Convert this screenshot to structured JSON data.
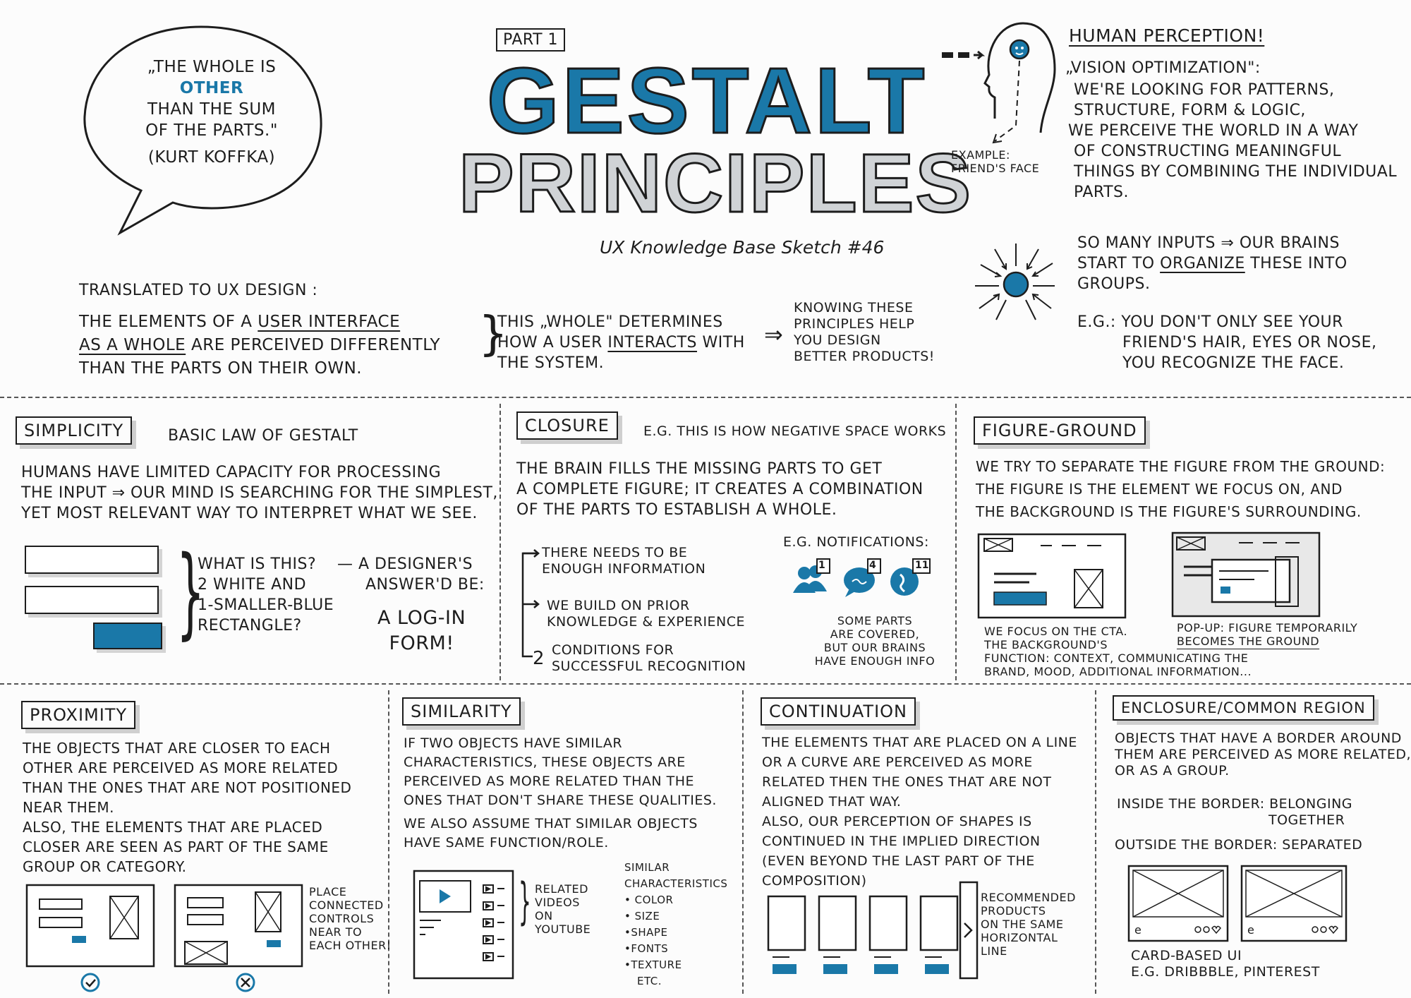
{
  "title": {
    "part": "PART 1",
    "line1": "GESTALT",
    "line2": "PRINCIPLES",
    "subtitle": "UX Knowledge Base Sketch #46"
  },
  "quote": {
    "line1": "„THE WHOLE IS",
    "line2": "OTHER",
    "line3": "THAN THE SUM",
    "line4": "OF THE PARTS.\"",
    "author": "(KURT KOFFKA)"
  },
  "perception": {
    "heading": "HUMAN PERCEPTION!",
    "example": "EXAMPLE:",
    "example2": "FRIEND'S FACE",
    "sub": "„VISION OPTIMIZATION\":",
    "lines": [
      "WE'RE LOOKING FOR PATTERNS,",
      "STRUCTURE, FORM & LOGIC,",
      "WE PERCEIVE THE WORLD IN A WAY",
      "OF CONSTRUCTING MEANINGFUL",
      "THINGS BY COMBINING THE INDIVIDUAL",
      "PARTS."
    ],
    "inputs1": "SO MANY INPUTS ⇒ OUR BRAINS",
    "inputs2a": "START TO ",
    "inputs2b": "ORGANIZE",
    "inputs2c": " THESE INTO",
    "inputs3": "GROUPS.",
    "eg1": "E.G.: YOU DON'T ONLY SEE YOUR",
    "eg2": "FRIEND'S HAIR, EYES OR NOSE,",
    "eg3": "YOU RECOGNIZE THE FACE."
  },
  "translated": {
    "heading": "TRANSLATED TO UX DESIGN :",
    "l1a": "THE ELEMENTS OF A ",
    "l1b": "USER INTERFACE",
    "l2a": "AS A WHOLE",
    "l2b": " ARE PERCEIVED DIFFERENTLY",
    "l3": "THAN THE PARTS ON THEIR OWN.",
    "m1": "THIS „WHOLE\" DETERMINES",
    "m2a": "HOW A USER ",
    "m2b": "INTERACTS",
    "m2c": " WITH",
    "m3": "THE SYSTEM.",
    "k1": "KNOWING THESE",
    "k2": "PRINCIPLES HELP",
    "k3": "YOU DESIGN",
    "k4": "BETTER PRODUCTS!"
  },
  "simplicity": {
    "title": "SIMPLICITY",
    "subtitle": "BASIC LAW OF GESTALT",
    "lines": [
      "HUMANS HAVE LIMITED CAPACITY FOR PROCESSING",
      "THE INPUT ⇒ OUR MIND IS SEARCHING FOR THE SIMPLEST,",
      "YET MOST RELEVANT WAY TO INTERPRET WHAT WE SEE."
    ],
    "q1": "WHAT IS THIS?",
    "q2": "2 WHITE AND",
    "q3": "1-SMALLER-BLUE",
    "q4": "RECTANGLE?",
    "d1": "— A DESIGNER'S",
    "d2": "ANSWER'D BE:",
    "a1": "A LOG-IN",
    "a2": "FORM!"
  },
  "closure": {
    "title": "CLOSURE",
    "subtitle": "E.G. THIS IS HOW NEGATIVE SPACE WORKS",
    "lines": [
      "THE BRAIN FILLS THE MISSING PARTS TO GET",
      "A COMPLETE FIGURE; IT CREATES A COMBINATION",
      "OF THE PARTS TO ESTABLISH A WHOLE."
    ],
    "b1a": "THERE NEEDS TO BE",
    "b1b": "ENOUGH INFORMATION",
    "b2a": "WE BUILD ON PRIOR",
    "b2b": "KNOWLEDGE & EXPERIENCE",
    "n": "2",
    "c1": "CONDITIONS FOR",
    "c2": "SUCCESSFUL RECOGNITION",
    "notif": "E.G. NOTIFICATIONS:",
    "badges": [
      "1",
      "4",
      "11"
    ],
    "s1": "SOME PARTS",
    "s2": "ARE COVERED,",
    "s3": "BUT OUR BRAINS",
    "s4": "HAVE ENOUGH INFO"
  },
  "figure": {
    "title": "FIGURE-GROUND",
    "lines": [
      "WE TRY TO SEPARATE THE FIGURE FROM THE GROUND:",
      "THE FIGURE IS THE ELEMENT WE FOCUS ON, AND",
      "THE BACKGROUND IS THE FIGURE'S SURROUNDING."
    ],
    "f1": "WE FOCUS ON THE CTA.",
    "f2": "THE BACKGROUND'S",
    "f3": "FUNCTION: CONTEXT, COMMUNICATING THE",
    "f4": "BRAND, MOOD, ADDITIONAL INFORMATION...",
    "p1": "POP-UP: FIGURE TEMPORARILY",
    "p2": "BECOMES THE GROUND"
  },
  "proximity": {
    "title": "PROXIMITY",
    "lines": [
      "THE OBJECTS THAT ARE CLOSER TO EACH",
      "OTHER ARE PERCEIVED AS MORE RELATED",
      "THAN THE ONES THAT ARE NOT POSITIONED",
      "NEAR THEM.",
      "ALSO, THE ELEMENTS THAT ARE PLACED",
      "CLOSER ARE SEEN AS PART OF THE SAME",
      "GROUP OR CATEGORY."
    ],
    "note": [
      "PLACE",
      "CONNECTED",
      "CONTROLS",
      "NEAR TO",
      "EACH OTHER!"
    ]
  },
  "similarity": {
    "title": "SIMILARITY",
    "lines": [
      "IF TWO OBJECTS HAVE SIMILAR",
      "CHARACTERISTICS, THESE OBJECTS ARE",
      "PERCEIVED AS MORE RELATED THAN THE",
      "ONES THAT DON'T SHARE THESE QUALITIES.",
      "WE ALSO ASSUME THAT SIMILAR OBJECTS",
      "HAVE SAME FUNCTION/ROLE."
    ],
    "related": [
      "RELATED",
      "VIDEOS",
      "ON",
      "YOUTUBE"
    ],
    "chars": [
      "SIMILAR",
      "CHARACTERISTICS",
      "• COLOR",
      "• SIZE",
      "•SHAPE",
      "•FONTS",
      "•TEXTURE",
      "ETC."
    ]
  },
  "continuation": {
    "title": "CONTINUATION",
    "lines": [
      "THE ELEMENTS THAT ARE PLACED ON A LINE",
      "OR A CURVE ARE PERCEIVED AS MORE",
      "RELATED THEN THE ONES THAT ARE NOT",
      "ALIGNED THAT WAY.",
      "ALSO, OUR PERCEPTION OF SHAPES IS",
      "CONTINUED IN THE IMPLIED DIRECTION",
      "(EVEN BEYOND THE LAST PART OF THE",
      "COMPOSITION)"
    ],
    "note": [
      "RECOMMENDED",
      "PRODUCTS",
      "ON THE SAME",
      "HORIZONTAL",
      "LINE"
    ]
  },
  "enclosure": {
    "title": "ENCLOSURE/COMMON REGION",
    "lines": [
      "OBJECTS THAT HAVE A BORDER AROUND",
      "THEM ARE PERCEIVED AS MORE RELATED,",
      "OR AS A GROUP."
    ],
    "in1": "INSIDE THE BORDER: BELONGING",
    "in2": "TOGETHER",
    "out": "OUTSIDE THE BORDER: SEPARATED",
    "c1": "CARD-BASED UI",
    "c2": "E.G. DRIBBBLE, PINTEREST"
  },
  "colors": {
    "accent": "#1a78a8",
    "ink": "#1d1d1d",
    "shadow": "#cfcfcf"
  }
}
